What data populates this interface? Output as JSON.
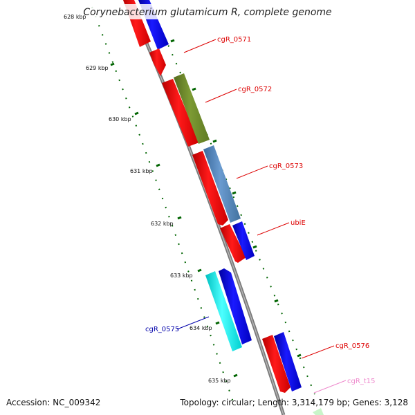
{
  "title": "Corynebacterium glutamicum R, complete genome",
  "footer": {
    "accession": "Accession: NC_009342",
    "topology": "Topology: circular; Length: 3,314,179 bp; Genes: 3,128"
  },
  "ticks": [
    "628 kbp",
    "629 kbp",
    "630 kbp",
    "631 kbp",
    "632 kbp",
    "633 kbp",
    "634 kbp",
    "635 kbp"
  ],
  "genes": [
    {
      "label": "cgR_0571",
      "color": "#dd0000"
    },
    {
      "label": "cgR_0572",
      "color": "#dd0000"
    },
    {
      "label": "cgR_0573",
      "color": "#dd0000"
    },
    {
      "label": "ubiE",
      "color": "#dd0000"
    },
    {
      "label": "cgR_0575",
      "color": "#0000aa"
    },
    {
      "label": "cgR_0576",
      "color": "#dd0000"
    },
    {
      "label": "cgR_t15",
      "color": "#ee88cc"
    }
  ],
  "colors": {
    "backbone": "#888888",
    "cds_red": "#ff0000",
    "cds_blue": "#0000ee",
    "olive": "#6b8e23",
    "steel_blue": "#4f81b8",
    "cyan": "#00eeee",
    "tick": "#006400"
  }
}
